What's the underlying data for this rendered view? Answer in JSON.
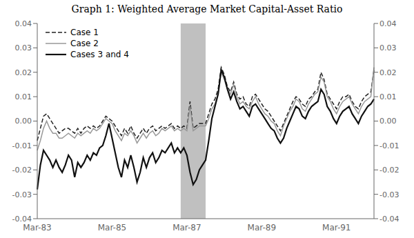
{
  "chart_data": {
    "type": "line",
    "title": "Graph 1:  Weighted Average Market Capital-Asset Ratio",
    "categories": [
      "Mar-83",
      null,
      null,
      null,
      null,
      null,
      null,
      null,
      null,
      null,
      null,
      null,
      null,
      null,
      null,
      null,
      null,
      null,
      null,
      null,
      null,
      null,
      null,
      null,
      "Mar-85",
      null,
      null,
      null,
      null,
      null,
      null,
      null,
      null,
      null,
      null,
      null,
      null,
      null,
      null,
      null,
      null,
      null,
      null,
      null,
      null,
      null,
      null,
      null,
      "Mar-87",
      null,
      null,
      null,
      null,
      null,
      null,
      null,
      null,
      null,
      null,
      null,
      null,
      null,
      null,
      null,
      null,
      null,
      null,
      null,
      null,
      null,
      null,
      null,
      "Mar-89",
      null,
      null,
      null,
      null,
      null,
      null,
      null,
      null,
      null,
      null,
      null,
      null,
      null,
      null,
      null,
      null,
      null,
      null,
      null,
      null,
      null,
      null,
      null,
      "Mar-91",
      null,
      null,
      null,
      null,
      null,
      null,
      null,
      null,
      null,
      null,
      null,
      null
    ],
    "series": [
      {
        "name": "Case 1",
        "color": "#222222",
        "line_style": "dashed",
        "values": [
          -0.008,
          -0.003,
          0.002,
          0.003,
          0.001,
          -0.001,
          -0.003,
          -0.005,
          -0.004,
          -0.003,
          -0.003,
          -0.004,
          -0.005,
          -0.003,
          -0.005,
          -0.003,
          -0.002,
          -0.003,
          -0.002,
          -0.003,
          -0.002,
          0.0,
          0.002,
          0.001,
          0.0,
          -0.002,
          -0.004,
          -0.006,
          -0.003,
          -0.005,
          -0.002,
          -0.005,
          -0.007,
          -0.005,
          -0.003,
          -0.005,
          -0.003,
          -0.002,
          -0.004,
          -0.003,
          -0.002,
          -0.003,
          -0.002,
          -0.001,
          -0.003,
          -0.002,
          -0.003,
          -0.002,
          -0.003,
          0.008,
          -0.003,
          -0.002,
          -0.001,
          -0.001,
          -0.001,
          0.003,
          0.007,
          0.009,
          0.013,
          0.022,
          0.019,
          0.014,
          0.012,
          0.016,
          0.011,
          0.009,
          0.01,
          0.007,
          0.006,
          0.01,
          0.011,
          0.009,
          0.007,
          0.005,
          0.004,
          0.002,
          0.0,
          -0.002,
          -0.004,
          -0.001,
          0.002,
          0.005,
          0.008,
          0.01,
          0.009,
          0.007,
          0.006,
          0.009,
          0.01,
          0.012,
          0.013,
          0.02,
          0.017,
          0.011,
          0.009,
          0.007,
          0.005,
          0.008,
          0.01,
          0.01,
          0.011,
          0.008,
          0.006,
          0.005,
          0.008,
          0.01,
          0.011,
          0.012,
          0.021
        ]
      },
      {
        "name": "Case 2",
        "color": "#999999",
        "line_style": "solid",
        "values": [
          -0.012,
          -0.008,
          -0.003,
          0.0,
          -0.003,
          -0.005,
          -0.005,
          -0.007,
          -0.007,
          -0.006,
          -0.005,
          -0.006,
          -0.007,
          -0.005,
          -0.006,
          -0.005,
          -0.004,
          -0.005,
          -0.003,
          -0.004,
          -0.003,
          -0.001,
          0.001,
          0.0,
          -0.001,
          -0.004,
          -0.006,
          -0.008,
          -0.005,
          -0.006,
          -0.004,
          -0.006,
          -0.009,
          -0.007,
          -0.005,
          -0.007,
          -0.005,
          -0.004,
          -0.006,
          -0.005,
          -0.003,
          -0.004,
          -0.003,
          -0.002,
          -0.004,
          -0.003,
          -0.004,
          -0.003,
          -0.004,
          0.006,
          -0.004,
          -0.003,
          -0.002,
          -0.002,
          -0.002,
          0.001,
          0.005,
          0.007,
          0.011,
          0.02,
          0.017,
          0.013,
          0.011,
          0.015,
          0.01,
          0.007,
          0.008,
          0.006,
          0.005,
          0.008,
          0.01,
          0.007,
          0.005,
          0.003,
          0.002,
          0.0,
          -0.001,
          -0.004,
          -0.006,
          -0.002,
          0.001,
          0.004,
          0.006,
          0.009,
          0.008,
          0.005,
          0.004,
          0.007,
          0.009,
          0.011,
          0.012,
          0.018,
          0.016,
          0.01,
          0.008,
          0.005,
          0.003,
          0.006,
          0.008,
          0.009,
          0.01,
          0.007,
          0.005,
          0.003,
          0.006,
          0.008,
          0.009,
          0.01,
          0.022
        ]
      },
      {
        "name": "Cases 3 and 4",
        "color": "#111111",
        "line_style": "solid",
        "values": [
          -0.028,
          -0.018,
          -0.012,
          -0.014,
          -0.016,
          -0.019,
          -0.016,
          -0.019,
          -0.021,
          -0.018,
          -0.014,
          -0.016,
          -0.023,
          -0.017,
          -0.019,
          -0.017,
          -0.014,
          -0.016,
          -0.013,
          -0.014,
          -0.011,
          -0.01,
          -0.006,
          -0.001,
          -0.007,
          -0.013,
          -0.019,
          -0.023,
          -0.016,
          -0.019,
          -0.014,
          -0.019,
          -0.025,
          -0.021,
          -0.015,
          -0.019,
          -0.015,
          -0.013,
          -0.017,
          -0.015,
          -0.012,
          -0.013,
          -0.011,
          -0.009,
          -0.013,
          -0.011,
          -0.013,
          -0.011,
          -0.014,
          -0.021,
          -0.026,
          -0.024,
          -0.02,
          -0.018,
          -0.016,
          -0.008,
          0.001,
          0.006,
          0.011,
          0.021,
          0.018,
          0.013,
          0.009,
          0.012,
          0.008,
          0.005,
          0.006,
          0.004,
          0.002,
          0.006,
          0.007,
          0.005,
          0.003,
          0.001,
          -0.001,
          -0.003,
          -0.004,
          -0.007,
          -0.009,
          -0.007,
          -0.003,
          0.0,
          0.003,
          0.006,
          0.005,
          0.002,
          0.001,
          0.004,
          0.006,
          0.007,
          0.008,
          0.013,
          0.011,
          0.006,
          0.004,
          0.001,
          -0.001,
          0.002,
          0.004,
          0.005,
          0.006,
          0.003,
          0.001,
          -0.001,
          0.002,
          0.004,
          0.006,
          0.007,
          0.009
        ]
      }
    ],
    "shaded": {
      "start": 46,
      "end": 54,
      "color": "#c0c0c0"
    },
    "ylim": [
      -0.04,
      0.04
    ],
    "yticks": [
      -0.04,
      -0.03,
      -0.02,
      -0.01,
      {
        "value": 0,
        "label": "0.00"
      },
      0.01,
      0.02,
      0.03,
      0.04
    ],
    "y2lim": [
      -0.04,
      0.04
    ],
    "y2ticks": [
      -0.04,
      -0.03,
      -0.02,
      -0.01,
      {
        "value": 0,
        "label": "0.00"
      },
      0.01,
      0.02,
      0.03,
      0.04
    ],
    "grid": false,
    "legend": "upper left"
  }
}
